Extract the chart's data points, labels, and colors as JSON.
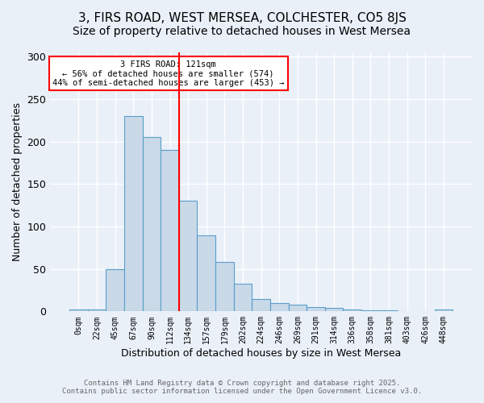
{
  "title": "3, FIRS ROAD, WEST MERSEA, COLCHESTER, CO5 8JS",
  "subtitle": "Size of property relative to detached houses in West Mersea",
  "xlabel": "Distribution of detached houses by size in West Mersea",
  "ylabel": "Number of detached properties",
  "bar_labels": [
    "0sqm",
    "22sqm",
    "45sqm",
    "67sqm",
    "90sqm",
    "112sqm",
    "134sqm",
    "157sqm",
    "179sqm",
    "202sqm",
    "224sqm",
    "246sqm",
    "269sqm",
    "291sqm",
    "314sqm",
    "336sqm",
    "358sqm",
    "381sqm",
    "403sqm",
    "426sqm",
    "448sqm"
  ],
  "bar_values": [
    2,
    2,
    50,
    230,
    205,
    190,
    130,
    90,
    58,
    33,
    15,
    10,
    8,
    5,
    4,
    2,
    1,
    1,
    0,
    0,
    2
  ],
  "bar_color": "#c9d9e8",
  "bar_edge_color": "#5a9ec9",
  "vline_x": 5.5,
  "vline_color": "red",
  "annotation_text": "3 FIRS ROAD: 121sqm\n← 56% of detached houses are smaller (574)\n44% of semi-detached houses are larger (453) →",
  "annotation_box_color": "white",
  "annotation_box_edge_color": "red",
  "ylim": [
    0,
    305
  ],
  "yticks": [
    0,
    50,
    100,
    150,
    200,
    250,
    300
  ],
  "bg_color": "#eaf0f8",
  "grid_color": "#d0dce8",
  "footer": "Contains HM Land Registry data © Crown copyright and database right 2025.\nContains public sector information licensed under the Open Government Licence v3.0.",
  "title_fontsize": 11,
  "subtitle_fontsize": 10,
  "figsize": [
    6.0,
    5.0
  ],
  "dpi": 100
}
